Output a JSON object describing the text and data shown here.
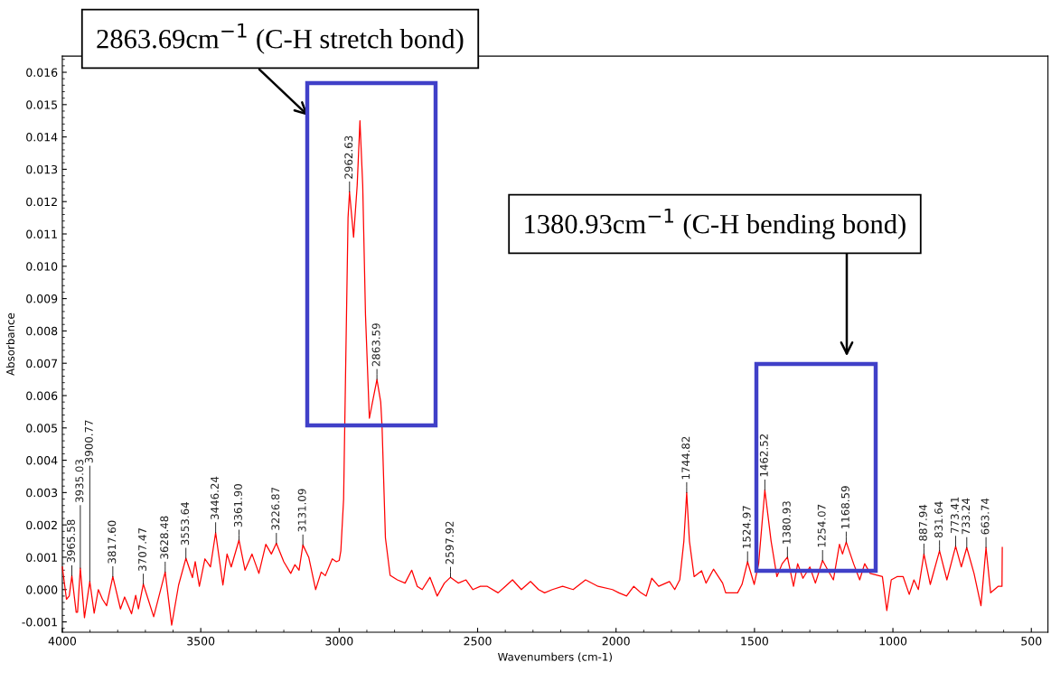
{
  "chart_data": {
    "type": "line",
    "xlabel": "Wavenumbers (cm-1)",
    "ylabel": "Absorbance",
    "x": [
      4000,
      3985,
      3975,
      3965.58,
      3950,
      3945,
      3935.03,
      3920,
      3900.77,
      3885,
      3870,
      3855,
      3840,
      3817.6,
      3790,
      3775,
      3750,
      3735,
      3725,
      3707.47,
      3690,
      3670,
      3628.48,
      3605,
      3580,
      3553.64,
      3530,
      3520,
      3505,
      3485,
      3465,
      3446.24,
      3420,
      3405,
      3390,
      3361.9,
      3340,
      3315,
      3290,
      3265,
      3245,
      3226.87,
      3200,
      3175,
      3160,
      3145,
      3131.09,
      3110,
      3085,
      3065,
      3050,
      3025,
      3010,
      3000,
      2994,
      2984,
      2976,
      2968,
      2962.63,
      2948,
      2935,
      2925,
      2915,
      2905,
      2891,
      2875,
      2863.59,
      2850,
      2845,
      2833,
      2816,
      2790,
      2762,
      2738,
      2718,
      2700,
      2672,
      2646,
      2620,
      2597.92,
      2570,
      2542,
      2517,
      2490,
      2465,
      2426,
      2400,
      2374,
      2342,
      2309,
      2280,
      2258,
      2230,
      2193,
      2155,
      2110,
      2065,
      2013,
      1990,
      1962,
      1936,
      1910,
      1891,
      1871,
      1846,
      1820,
      1807,
      1788,
      1770,
      1755,
      1744.82,
      1735,
      1718,
      1691,
      1675,
      1648,
      1615,
      1604,
      1561,
      1545,
      1524.97,
      1501,
      1485,
      1462.52,
      1440,
      1419,
      1400,
      1380.93,
      1359,
      1344,
      1325,
      1300,
      1280,
      1254.07,
      1235,
      1215,
      1193,
      1182,
      1168.59,
      1142,
      1120,
      1102,
      1082,
      1038,
      1022,
      1006,
      985,
      963,
      941,
      924,
      908,
      887.94,
      865,
      831.64,
      805,
      773.41,
      753,
      733.24,
      707,
      682,
      663.74,
      647,
      620,
      606,
      605
    ],
    "series": [
      {
        "color": "#ff0000",
        "values": [
          0.0007,
          -0.0003,
          -0.0002,
          0.00043,
          -0.0007,
          -0.0007,
          0.00066,
          -0.00087,
          0.00025,
          -0.00073,
          0.0,
          -0.0003,
          -0.0005,
          0.0004,
          -0.0006,
          -0.00023,
          -0.00075,
          -0.00018,
          -0.0006,
          0.00017,
          -0.0003,
          -0.00084,
          0.00054,
          -0.0011,
          0.00014,
          0.00097,
          0.00037,
          0.00086,
          0.0001,
          0.00095,
          0.0007,
          0.00176,
          0.00014,
          0.0011,
          0.0007,
          0.00153,
          0.0006,
          0.0011,
          0.0005,
          0.0014,
          0.0011,
          0.00143,
          0.00086,
          0.0005,
          0.00077,
          0.0006,
          0.00138,
          0.001,
          0.0,
          0.00054,
          0.00043,
          0.00095,
          0.00086,
          0.0009,
          0.0012,
          0.0028,
          0.0072,
          0.0115,
          0.0123,
          0.0109,
          0.0125,
          0.0145,
          0.0125,
          0.0085,
          0.0053,
          0.006,
          0.0065,
          0.0058,
          0.005,
          0.0016,
          0.00044,
          0.0003,
          0.0002,
          0.0006,
          0.0001,
          0.0,
          0.00038,
          -0.0002,
          0.0002,
          0.00038,
          0.0002,
          0.0003,
          0.0,
          0.0001,
          0.0001,
          -0.0001,
          0.0001,
          0.0003,
          0.0,
          0.00025,
          0.0,
          -0.0001,
          0.0,
          0.0001,
          0.0,
          0.0003,
          0.0001,
          0.0,
          -0.0001,
          -0.0002,
          0.0001,
          -0.0001,
          -0.0002,
          0.00035,
          0.0001,
          0.0002,
          0.00025,
          0.0,
          0.0003,
          0.0015,
          0.003,
          0.0015,
          0.0004,
          0.00058,
          0.0002,
          0.00063,
          0.0002,
          -0.0001,
          -0.0001,
          0.00016,
          0.00086,
          0.00016,
          0.0008,
          0.00308,
          0.0015,
          0.0004,
          0.0008,
          0.001,
          0.0001,
          0.0008,
          0.00035,
          0.0007,
          0.0002,
          0.0009,
          0.0006,
          0.0003,
          0.0014,
          0.0011,
          0.00147,
          0.0008,
          0.0003,
          0.0008,
          0.0005,
          0.0004,
          -0.00065,
          0.0003,
          0.0004,
          0.0004,
          -0.00015,
          0.0003,
          0.0,
          0.0011,
          0.00016,
          0.0012,
          0.0003,
          0.00134,
          0.0007,
          0.0013,
          0.0005,
          -0.0005,
          0.0013,
          -0.0001,
          0.0001,
          0.0001,
          0.0013
        ]
      }
    ],
    "xlim": [
      4000,
      440
    ],
    "xticks": [
      4000,
      3500,
      3000,
      2500,
      2000,
      1500,
      1000,
      500
    ],
    "ylim": [
      -0.00132,
      0.0165
    ],
    "yticks": [
      {
        "value": -0.001,
        "label": "-0.001"
      },
      {
        "value": 0,
        "label": "0.000"
      },
      {
        "value": 0.001,
        "label": "0.001"
      },
      {
        "value": 0.002,
        "label": "0.002"
      },
      {
        "value": 0.003,
        "label": "0.003"
      },
      {
        "value": 0.004,
        "label": "0.004"
      },
      {
        "value": 0.005,
        "label": "0.005"
      },
      {
        "value": 0.006,
        "label": "0.006"
      },
      {
        "value": 0.007,
        "label": "0.007"
      },
      {
        "value": 0.008,
        "label": "0.008"
      },
      {
        "value": 0.009,
        "label": "0.009"
      },
      {
        "value": 0.01,
        "label": "0.010"
      },
      {
        "value": 0.011,
        "label": "0.011"
      },
      {
        "value": 0.012,
        "label": "0.012"
      },
      {
        "value": 0.013,
        "label": "0.013"
      },
      {
        "value": 0.014,
        "label": "0.014"
      },
      {
        "value": 0.015,
        "label": "0.015"
      },
      {
        "value": 0.016,
        "label": "0.016"
      }
    ],
    "grid": false,
    "annotations": [
      "2863.69cm$^{−1}$ (C-H stretch bond)",
      "1380.93cm$^{−1}$ (C-H bending bond)",
      {
        "text": "3965.58",
        "x": 3965.58,
        "y": 0.00043
      },
      {
        "text": "3935.03",
        "x": 3935.03,
        "y": 0.00066
      },
      {
        "text": "3900.77",
        "x": 3900.77,
        "y": 0.00025
      },
      {
        "text": "3817.60",
        "x": 3817.6,
        "y": 0.0004
      },
      {
        "text": "3707.47",
        "x": 3707.47,
        "y": 0.00017
      },
      {
        "text": "3628.48",
        "x": 3628.48,
        "y": 0.00054
      },
      {
        "text": "3553.64",
        "x": 3553.64,
        "y": 0.00097
      },
      {
        "text": "3446.24",
        "x": 3446.24,
        "y": 0.00176
      },
      {
        "text": "3361.90",
        "x": 3361.9,
        "y": 0.00153
      },
      {
        "text": "3226.87",
        "x": 3226.87,
        "y": 0.00143
      },
      {
        "text": "3131.09",
        "x": 3131.09,
        "y": 0.00138
      },
      {
        "text": "2962.63",
        "x": 2962.63,
        "y": 0.0123
      },
      {
        "text": "2863.59",
        "x": 2863.59,
        "y": 0.0065
      },
      {
        "text": "2597.92",
        "x": 2597.92,
        "y": 0.00038
      },
      {
        "text": "1744.82",
        "x": 1744.82,
        "y": 0.003
      },
      {
        "text": "1524.97",
        "x": 1524.97,
        "y": 0.00086
      },
      {
        "text": "1462.52",
        "x": 1462.52,
        "y": 0.00308
      },
      {
        "text": "1380.93",
        "x": 1380.93,
        "y": 0.001
      },
      {
        "text": "1254.07",
        "x": 1254.07,
        "y": 0.0009
      },
      {
        "text": "1168.59",
        "x": 1168.59,
        "y": 0.00147
      },
      {
        "text": "887.94",
        "x": 887.94,
        "y": 0.0011
      },
      {
        "text": "831.64",
        "x": 831.64,
        "y": 0.0012
      },
      {
        "text": "773.41",
        "x": 773.41,
        "y": 0.00134
      },
      {
        "text": "733.24",
        "x": 733.24,
        "y": 0.0013
      },
      {
        "text": "663.74",
        "x": 663.74,
        "y": 0.0013
      }
    ]
  }
}
